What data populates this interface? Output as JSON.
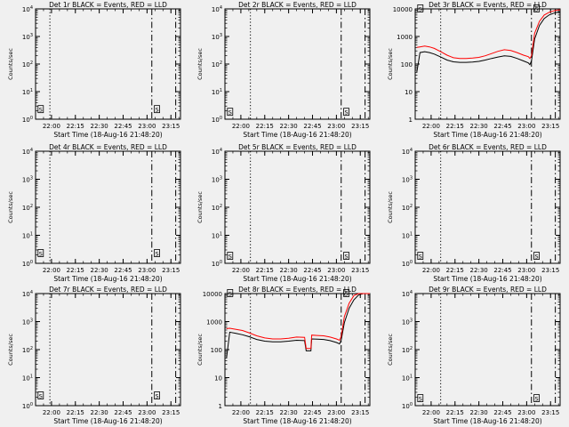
{
  "figure": {
    "background": "#f0f0f0",
    "colors": {
      "events": "#000000",
      "lld": "#ff0000",
      "axes": "#000000"
    }
  },
  "chart_data": [
    {
      "id": "det1r",
      "type": "line",
      "title": "Det 1r BLACK = Events, RED = LLD",
      "xlabel": "Start Time (18-Aug-16 21:48:20)",
      "ylabel": "Counts/sec",
      "scale": "log",
      "xlim": [
        "21:50",
        "23:21"
      ],
      "ylim": [
        1,
        10000
      ],
      "x_ticks": [
        "22:00",
        "22:15",
        "22:30",
        "22:45",
        "23:00",
        "23:15"
      ],
      "y_ticks": [
        "10^0",
        "10^1",
        "10^2",
        "10^3",
        "10^4"
      ],
      "markers": [
        {
          "style": "dot",
          "x": "21:59"
        },
        {
          "style": "dashdot",
          "x": "23:03"
        },
        {
          "style": "dashdot",
          "x": "23:18"
        }
      ],
      "labels": [
        {
          "text": "S",
          "x": "21:51",
          "y": 2
        },
        {
          "text": "S",
          "x": "23:04",
          "y": 2
        }
      ],
      "series": []
    },
    {
      "id": "det2r",
      "type": "line",
      "title": "Det 2r BLACK = Events, RED = LLD",
      "xlabel": "Start Time (18-Aug-16 21:48:20)",
      "ylabel": "Counts/sec",
      "scale": "log",
      "xlim": [
        "21:50",
        "23:21"
      ],
      "ylim": [
        1,
        10000
      ],
      "x_ticks": [
        "22:00",
        "22:15",
        "22:30",
        "22:45",
        "23:00",
        "23:15"
      ],
      "y_ticks": [
        "10^0",
        "10^1",
        "10^2",
        "10^3",
        "10^4"
      ],
      "markers": [
        {
          "style": "dot",
          "x": "22:06"
        },
        {
          "style": "dashdot",
          "x": "23:03"
        },
        {
          "style": "dashdot",
          "x": "23:18"
        }
      ],
      "labels": [
        {
          "text": "S",
          "x": "21:51",
          "y": 1.6
        },
        {
          "text": "S",
          "x": "23:04",
          "y": 1.6
        }
      ],
      "series": []
    },
    {
      "id": "det3r",
      "type": "line",
      "title": "Det 3r BLACK = Events, RED = LLD",
      "xlabel": "Start Time (18-Aug-16 21:48:20)",
      "ylabel": "Counts/sec",
      "scale": "log",
      "xlim": [
        "21:50",
        "23:21"
      ],
      "ylim": [
        1,
        10000
      ],
      "x_ticks": [
        "22:00",
        "22:15",
        "22:30",
        "22:45",
        "23:00",
        "23:15"
      ],
      "y_ticks": [
        "1",
        "10",
        "100",
        "1000",
        "10000"
      ],
      "markers": [
        {
          "style": "dot",
          "x": "22:06"
        },
        {
          "style": "dashdot",
          "x": "23:03"
        },
        {
          "style": "dashdot",
          "x": "23:18"
        }
      ],
      "labels": [
        {
          "text": "S",
          "x": "21:51",
          "y": 9000
        },
        {
          "text": "S",
          "x": "23:04",
          "y": 9000
        }
      ],
      "series": [
        {
          "color": "#000000",
          "x": [
            "21:51",
            "21:53",
            "21:56",
            "21:59",
            "22:02",
            "22:06",
            "22:10",
            "22:14",
            "22:18",
            "22:22",
            "22:26",
            "22:30",
            "22:34",
            "22:38",
            "22:42",
            "22:46",
            "22:50",
            "22:54",
            "22:58",
            "23:01",
            "23:02",
            "23:03",
            "23:05",
            "23:08",
            "23:11",
            "23:14",
            "23:17",
            "23:19",
            "23:21"
          ],
          "y": [
            50,
            260,
            280,
            260,
            230,
            180,
            140,
            120,
            115,
            115,
            118,
            125,
            140,
            160,
            180,
            200,
            190,
            160,
            130,
            110,
            95,
            130,
            800,
            2500,
            4500,
            6000,
            7000,
            7500,
            7800
          ]
        },
        {
          "color": "#ff0000",
          "x": [
            "21:51",
            "21:53",
            "21:56",
            "21:59",
            "22:02",
            "22:06",
            "22:10",
            "22:14",
            "22:18",
            "22:22",
            "22:26",
            "22:30",
            "22:34",
            "22:38",
            "22:42",
            "22:46",
            "22:50",
            "22:54",
            "22:58",
            "23:01",
            "23:02",
            "23:03",
            "23:05",
            "23:08",
            "23:11",
            "23:14",
            "23:17",
            "23:19",
            "23:21"
          ],
          "y": [
            400,
            420,
            450,
            420,
            370,
            280,
            210,
            170,
            160,
            160,
            165,
            175,
            200,
            240,
            290,
            330,
            310,
            260,
            210,
            185,
            160,
            200,
            1300,
            3500,
            6000,
            7500,
            8500,
            9000,
            9200
          ]
        }
      ]
    },
    {
      "id": "det4r",
      "type": "line",
      "title": "Det 4r BLACK = Events, RED = LLD",
      "xlabel": "Start Time (18-Aug-16 21:48:20)",
      "ylabel": "Counts/sec",
      "scale": "log",
      "xlim": [
        "21:50",
        "23:21"
      ],
      "ylim": [
        1,
        10000
      ],
      "x_ticks": [
        "22:00",
        "22:15",
        "22:30",
        "22:45",
        "23:00",
        "23:15"
      ],
      "y_ticks": [
        "10^0",
        "10^1",
        "10^2",
        "10^3",
        "10^4"
      ],
      "markers": [
        {
          "style": "dot",
          "x": "21:59"
        },
        {
          "style": "dashdot",
          "x": "23:03"
        },
        {
          "style": "dashdot",
          "x": "23:18"
        }
      ],
      "labels": [
        {
          "text": "S",
          "x": "21:51",
          "y": 2
        },
        {
          "text": "S",
          "x": "23:04",
          "y": 2
        }
      ],
      "series": []
    },
    {
      "id": "det5r",
      "type": "line",
      "title": "Det 5r BLACK = Events, RED = LLD",
      "xlabel": "Start Time (18-Aug-16 21:48:20)",
      "ylabel": "Counts/sec",
      "scale": "log",
      "xlim": [
        "21:50",
        "23:21"
      ],
      "ylim": [
        1,
        10000
      ],
      "x_ticks": [
        "22:00",
        "22:15",
        "22:30",
        "22:45",
        "23:00",
        "23:15"
      ],
      "y_ticks": [
        "10^0",
        "10^1",
        "10^2",
        "10^3",
        "10^4"
      ],
      "markers": [
        {
          "style": "dot",
          "x": "22:06"
        },
        {
          "style": "dashdot",
          "x": "23:03"
        },
        {
          "style": "dashdot",
          "x": "23:18"
        }
      ],
      "labels": [
        {
          "text": "S",
          "x": "21:51",
          "y": 1.6
        },
        {
          "text": "S",
          "x": "23:04",
          "y": 1.6
        }
      ],
      "series": []
    },
    {
      "id": "det6r",
      "type": "line",
      "title": "Det 6r BLACK = Events, RED = LLD",
      "xlabel": "Start Time (18-Aug-16 21:48:20)",
      "ylabel": "Counts/sec",
      "scale": "log",
      "xlim": [
        "21:50",
        "23:21"
      ],
      "ylim": [
        1,
        10000
      ],
      "x_ticks": [
        "22:00",
        "22:15",
        "22:30",
        "22:45",
        "23:00",
        "23:15"
      ],
      "y_ticks": [
        "10^0",
        "10^1",
        "10^2",
        "10^3",
        "10^4"
      ],
      "markers": [
        {
          "style": "dot",
          "x": "22:06"
        },
        {
          "style": "dashdot",
          "x": "23:03"
        },
        {
          "style": "dashdot",
          "x": "23:18"
        }
      ],
      "labels": [
        {
          "text": "S",
          "x": "21:51",
          "y": 1.6
        },
        {
          "text": "S",
          "x": "23:04",
          "y": 1.6
        }
      ],
      "series": []
    },
    {
      "id": "det7r",
      "type": "line",
      "title": "Det 7r BLACK = Events, RED = LLD",
      "xlabel": "Start Time (18-Aug-16 21:48:20)",
      "ylabel": "Counts/sec",
      "scale": "log",
      "xlim": [
        "21:50",
        "23:21"
      ],
      "ylim": [
        1,
        10000
      ],
      "x_ticks": [
        "22:00",
        "22:15",
        "22:30",
        "22:45",
        "23:00",
        "23:15"
      ],
      "y_ticks": [
        "10^0",
        "10^1",
        "10^2",
        "10^3",
        "10^4"
      ],
      "markers": [
        {
          "style": "dot",
          "x": "21:59"
        },
        {
          "style": "dashdot",
          "x": "23:03"
        },
        {
          "style": "dashdot",
          "x": "23:18"
        }
      ],
      "labels": [
        {
          "text": "S",
          "x": "21:51",
          "y": 2
        },
        {
          "text": "S",
          "x": "23:04",
          "y": 2
        }
      ],
      "series": []
    },
    {
      "id": "det8r",
      "type": "line",
      "title": "Det 8r BLACK = Events, RED = LLD",
      "xlabel": "Start Time (18-Aug-16 21:48:20)",
      "ylabel": "Counts/sec",
      "scale": "log",
      "xlim": [
        "21:50",
        "23:21"
      ],
      "ylim": [
        1,
        10000
      ],
      "x_ticks": [
        "22:00",
        "22:15",
        "22:30",
        "22:45",
        "23:00",
        "23:15"
      ],
      "y_ticks": [
        "1",
        "10",
        "100",
        "1000",
        "10000"
      ],
      "markers": [
        {
          "style": "dot",
          "x": "22:06"
        },
        {
          "style": "dashdot",
          "x": "23:03"
        },
        {
          "style": "dashdot",
          "x": "23:18"
        }
      ],
      "labels": [
        {
          "text": "S",
          "x": "21:51",
          "y": 9000
        },
        {
          "text": "S",
          "x": "23:04",
          "y": 9000
        }
      ],
      "series": [
        {
          "color": "#000000",
          "x": [
            "21:51",
            "21:53",
            "21:57",
            "22:01",
            "22:05",
            "22:10",
            "22:15",
            "22:20",
            "22:25",
            "22:30",
            "22:35",
            "22:40",
            "22:41",
            "22:44",
            "22:44.5",
            "22:48",
            "22:52",
            "22:56",
            "23:00",
            "23:02",
            "23:03",
            "23:05",
            "23:08",
            "23:11",
            "23:14",
            "23:17",
            "23:19",
            "23:21"
          ],
          "y": [
            50,
            420,
            380,
            340,
            290,
            230,
            200,
            190,
            190,
            200,
            215,
            210,
            90,
            90,
            240,
            235,
            230,
            210,
            180,
            160,
            220,
            900,
            3000,
            6000,
            9000,
            10000,
            10000,
            10000
          ]
        },
        {
          "color": "#ff0000",
          "x": [
            "21:51",
            "21:53",
            "21:57",
            "22:01",
            "22:05",
            "22:10",
            "22:15",
            "22:20",
            "22:25",
            "22:30",
            "22:35",
            "22:40",
            "22:41",
            "22:44",
            "22:44.5",
            "22:48",
            "22:52",
            "22:56",
            "23:00",
            "23:02",
            "23:03",
            "23:05",
            "23:08",
            "23:11",
            "23:14",
            "23:17",
            "23:19",
            "23:21"
          ],
          "y": [
            560,
            580,
            530,
            480,
            400,
            310,
            260,
            240,
            240,
            255,
            280,
            275,
            110,
            110,
            330,
            320,
            310,
            280,
            240,
            215,
            300,
            1500,
            4500,
            8500,
            10000,
            10000,
            10000,
            10000
          ]
        }
      ]
    },
    {
      "id": "det9r",
      "type": "line",
      "title": "Det 9r BLACK = Events, RED = LLD",
      "xlabel": "Start Time (18-Aug-16 21:48:20)",
      "ylabel": "Counts/sec",
      "scale": "log",
      "xlim": [
        "21:50",
        "23:21"
      ],
      "ylim": [
        1,
        10000
      ],
      "x_ticks": [
        "22:00",
        "22:15",
        "22:30",
        "22:45",
        "23:00",
        "23:15"
      ],
      "y_ticks": [
        "10^0",
        "10^1",
        "10^2",
        "10^3",
        "10^4"
      ],
      "markers": [
        {
          "style": "dot",
          "x": "22:06"
        },
        {
          "style": "dashdot",
          "x": "23:03"
        },
        {
          "style": "dashdot",
          "x": "23:18"
        }
      ],
      "labels": [
        {
          "text": "S",
          "x": "21:51",
          "y": 1.6
        },
        {
          "text": "S",
          "x": "23:04",
          "y": 1.6
        }
      ],
      "series": []
    }
  ]
}
